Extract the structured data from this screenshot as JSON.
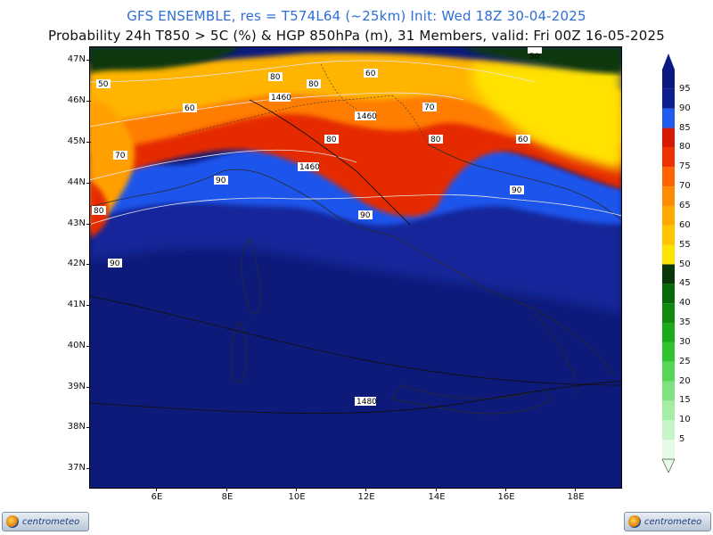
{
  "header": {
    "title_line1": "GFS ENSEMBLE, res = T574L64 (~25km)    Init: Wed 18Z 30-04-2025",
    "title_line2": "Probability 24h T850 > 5C (%) & HGP 850hPa (m), 31 Members, valid: Fri 00Z 16-05-2025"
  },
  "axes": {
    "latitudes": [
      "47N",
      "46N",
      "45N",
      "44N",
      "43N",
      "42N",
      "41N",
      "40N",
      "39N",
      "38N",
      "37N"
    ],
    "longitudes": [
      "6E",
      "8E",
      "10E",
      "12E",
      "14E",
      "16E",
      "18E"
    ]
  },
  "colorbar": {
    "levels": [
      "5",
      "10",
      "15",
      "20",
      "25",
      "30",
      "35",
      "40",
      "45",
      "50",
      "55",
      "60",
      "65",
      "70",
      "75",
      "80",
      "85",
      "90",
      "95"
    ],
    "colors": [
      "#e6fbe6",
      "#c7f5c7",
      "#a5eda5",
      "#7fe27f",
      "#55d655",
      "#2fc42f",
      "#1aaa1a",
      "#118a11",
      "#0a6a0a",
      "#08380a",
      "#ffe300",
      "#ffc400",
      "#ffa800",
      "#ff8c00",
      "#ff6400",
      "#f03000",
      "#d81800",
      "#1e5cf0",
      "#0d1f8e",
      "#0a1a80"
    ]
  },
  "map_labels": {
    "prob_contours": [
      "50",
      "50",
      "60",
      "60",
      "60",
      "70",
      "70",
      "80",
      "80",
      "80",
      "80",
      "90",
      "90",
      "90",
      "90",
      "80"
    ],
    "hgp_contours": [
      "1460",
      "1460",
      "1460",
      "1480"
    ]
  },
  "logos": {
    "text": "centrometeo"
  }
}
